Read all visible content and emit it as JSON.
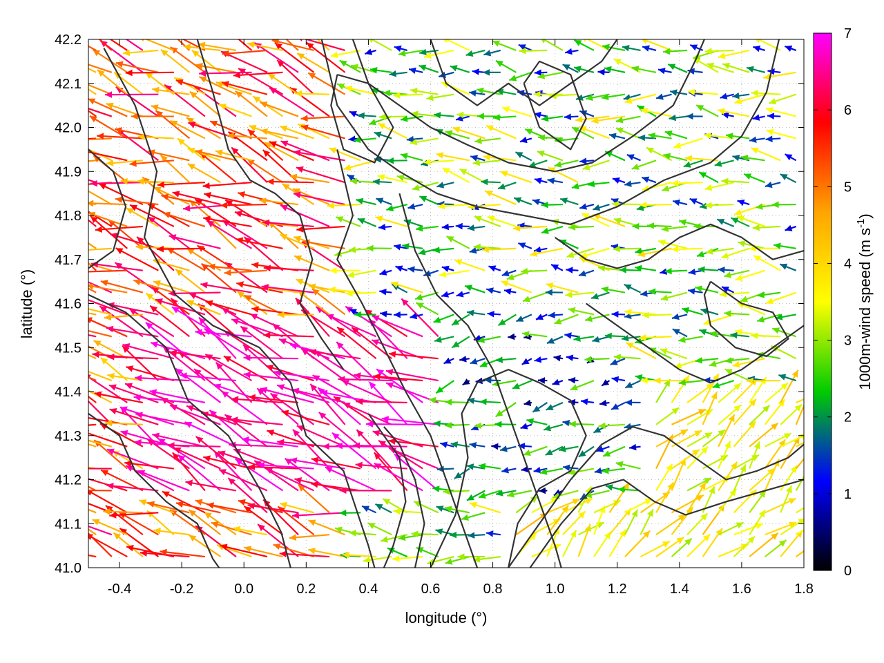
{
  "chart_data": {
    "type": "vector-field",
    "xlabel": "longitude (°)",
    "ylabel": "latitude (°)",
    "colorbar": {
      "label_main": "1000m-wind speed (m s",
      "label_sup": "-1",
      "label_end": ")",
      "range": [
        0,
        7
      ],
      "ticks": [
        "0",
        "1",
        "2",
        "3",
        "4",
        "5",
        "6",
        "7"
      ]
    },
    "x_ticks": [
      "-0.4",
      "-0.2",
      "0.0",
      "0.2",
      "0.4",
      "0.6",
      "0.8",
      "1.0",
      "1.2",
      "1.4",
      "1.6",
      "1.8"
    ],
    "y_ticks": [
      "41.0",
      "41.1",
      "41.2",
      "41.3",
      "41.4",
      "41.5",
      "41.6",
      "41.7",
      "41.8",
      "41.9",
      "42.0",
      "42.1",
      "42.2"
    ],
    "xlim": [
      -0.5,
      1.8
    ],
    "ylim": [
      41.0,
      42.2
    ],
    "grid": true,
    "colormap": [
      "#000000",
      "#0000ff",
      "#00cc00",
      "#ffff00",
      "#ffa500",
      "#ff0000",
      "#ff00ff"
    ],
    "contour_color": "#333333",
    "vector_grid": {
      "dx": 0.05,
      "dy": 0.05
    },
    "wind_regimes": [
      {
        "region": "west",
        "lon": [
          -0.5,
          0.35
        ],
        "lat": [
          41.0,
          42.2
        ],
        "speed": [
          4,
          6.5
        ],
        "direction_deg_from": 110
      },
      {
        "region": "south-west core",
        "lon": [
          -0.3,
          0.65
        ],
        "lat": [
          41.15,
          41.55
        ],
        "speed": [
          6,
          7
        ],
        "direction_deg_from": 115
      },
      {
        "region": "north-centre",
        "lon": [
          0.35,
          1.8
        ],
        "lat": [
          41.6,
          42.2
        ],
        "speed": [
          1,
          4
        ],
        "direction_deg_from": 95
      },
      {
        "region": "south-east",
        "lon": [
          0.85,
          1.8
        ],
        "lat": [
          41.0,
          41.4
        ],
        "speed": [
          3,
          4.5
        ],
        "direction_deg_from": 225
      },
      {
        "region": "centre",
        "lon": [
          0.65,
          1.3
        ],
        "lat": [
          41.15,
          41.6
        ],
        "speed": [
          0.5,
          3
        ],
        "direction_deg_from": 80
      }
    ],
    "contours": [
      [
        [
          -0.45,
          42.18
        ],
        [
          -0.35,
          42.05
        ],
        [
          -0.28,
          41.9
        ],
        [
          -0.32,
          41.75
        ],
        [
          -0.22,
          41.62
        ],
        [
          -0.1,
          41.55
        ],
        [
          0.05,
          41.5
        ],
        [
          0.15,
          41.42
        ],
        [
          0.2,
          41.3
        ],
        [
          0.32,
          41.22
        ],
        [
          0.4,
          41.05
        ],
        [
          0.42,
          41.0
        ]
      ],
      [
        [
          -0.5,
          41.62
        ],
        [
          -0.38,
          41.58
        ],
        [
          -0.25,
          41.5
        ],
        [
          -0.18,
          41.38
        ],
        [
          -0.05,
          41.3
        ],
        [
          0.05,
          41.18
        ],
        [
          0.12,
          41.08
        ],
        [
          0.15,
          41.0
        ]
      ],
      [
        [
          -0.5,
          41.35
        ],
        [
          -0.4,
          41.3
        ],
        [
          -0.35,
          41.22
        ],
        [
          -0.25,
          41.15
        ],
        [
          -0.15,
          41.1
        ],
        [
          -0.1,
          41.02
        ],
        [
          -0.08,
          41.0
        ]
      ],
      [
        [
          0.25,
          42.2
        ],
        [
          0.3,
          42.05
        ],
        [
          0.4,
          41.95
        ],
        [
          0.5,
          41.9
        ],
        [
          0.62,
          41.85
        ],
        [
          0.75,
          41.82
        ],
        [
          0.9,
          41.8
        ],
        [
          1.05,
          41.78
        ],
        [
          1.2,
          41.82
        ],
        [
          1.35,
          41.88
        ],
        [
          1.5,
          41.92
        ],
        [
          1.6,
          41.98
        ],
        [
          1.68,
          42.08
        ],
        [
          1.72,
          42.2
        ]
      ],
      [
        [
          0.35,
          42.2
        ],
        [
          0.4,
          42.1
        ],
        [
          0.5,
          42.05
        ],
        [
          0.6,
          42.0
        ],
        [
          0.72,
          41.96
        ],
        [
          0.85,
          41.92
        ],
        [
          1.0,
          41.9
        ],
        [
          1.12,
          41.92
        ],
        [
          1.25,
          41.98
        ],
        [
          1.38,
          42.05
        ],
        [
          1.45,
          42.15
        ],
        [
          1.48,
          42.2
        ]
      ],
      [
        [
          0.6,
          42.2
        ],
        [
          0.65,
          42.1
        ],
        [
          0.75,
          42.05
        ],
        [
          0.85,
          42.1
        ],
        [
          0.95,
          42.05
        ],
        [
          1.05,
          42.1
        ],
        [
          1.15,
          42.15
        ],
        [
          1.2,
          42.2
        ]
      ],
      [
        [
          0.3,
          41.95
        ],
        [
          0.35,
          41.8
        ],
        [
          0.3,
          41.7
        ],
        [
          0.38,
          41.6
        ],
        [
          0.45,
          41.5
        ],
        [
          0.52,
          41.4
        ],
        [
          0.6,
          41.3
        ],
        [
          0.65,
          41.2
        ],
        [
          0.7,
          41.1
        ],
        [
          0.75,
          41.0
        ]
      ],
      [
        [
          0.5,
          41.85
        ],
        [
          0.55,
          41.72
        ],
        [
          0.62,
          41.62
        ],
        [
          0.72,
          41.55
        ],
        [
          0.8,
          41.45
        ],
        [
          0.85,
          41.35
        ],
        [
          0.9,
          41.25
        ],
        [
          0.95,
          41.15
        ],
        [
          1.0,
          41.05
        ],
        [
          1.02,
          41.0
        ]
      ],
      [
        [
          0.6,
          41.0
        ],
        [
          0.68,
          41.12
        ],
        [
          0.72,
          41.25
        ],
        [
          0.7,
          41.35
        ],
        [
          0.75,
          41.42
        ],
        [
          0.85,
          41.45
        ],
        [
          0.95,
          41.42
        ],
        [
          1.05,
          41.38
        ],
        [
          1.1,
          41.3
        ],
        [
          1.05,
          41.22
        ],
        [
          0.95,
          41.18
        ],
        [
          0.88,
          41.1
        ],
        [
          0.85,
          41.0
        ]
      ],
      [
        [
          0.85,
          41.0
        ],
        [
          0.95,
          41.1
        ],
        [
          1.05,
          41.2
        ],
        [
          1.15,
          41.28
        ],
        [
          1.25,
          41.32
        ],
        [
          1.35,
          41.3
        ],
        [
          1.45,
          41.25
        ],
        [
          1.55,
          41.2
        ],
        [
          1.65,
          41.22
        ],
        [
          1.75,
          41.25
        ],
        [
          1.8,
          41.28
        ]
      ],
      [
        [
          0.92,
          41.0
        ],
        [
          1.02,
          41.1
        ],
        [
          1.12,
          41.18
        ],
        [
          1.22,
          41.2
        ],
        [
          1.32,
          41.15
        ],
        [
          1.42,
          41.12
        ],
        [
          1.55,
          41.15
        ],
        [
          1.7,
          41.18
        ],
        [
          1.8,
          41.2
        ]
      ],
      [
        [
          1.1,
          41.6
        ],
        [
          1.2,
          41.55
        ],
        [
          1.3,
          41.5
        ],
        [
          1.4,
          41.45
        ],
        [
          1.5,
          41.42
        ],
        [
          1.6,
          41.45
        ],
        [
          1.7,
          41.5
        ],
        [
          1.8,
          41.55
        ]
      ],
      [
        [
          1.0,
          41.75
        ],
        [
          1.1,
          41.7
        ],
        [
          1.2,
          41.68
        ],
        [
          1.3,
          41.7
        ],
        [
          1.4,
          41.75
        ],
        [
          1.5,
          41.78
        ],
        [
          1.6,
          41.75
        ],
        [
          1.7,
          41.7
        ],
        [
          1.8,
          41.72
        ]
      ],
      [
        [
          -0.5,
          41.95
        ],
        [
          -0.42,
          41.9
        ],
        [
          -0.38,
          41.82
        ],
        [
          -0.42,
          41.72
        ],
        [
          -0.5,
          41.68
        ]
      ],
      [
        [
          -0.15,
          42.2
        ],
        [
          -0.1,
          42.08
        ],
        [
          -0.05,
          41.95
        ],
        [
          0.02,
          41.88
        ],
        [
          0.1,
          41.85
        ],
        [
          0.18,
          41.8
        ],
        [
          0.22,
          41.7
        ],
        [
          0.18,
          41.6
        ],
        [
          0.25,
          41.52
        ],
        [
          0.32,
          41.45
        ]
      ],
      [
        [
          0.4,
          41.35
        ],
        [
          0.45,
          41.3
        ],
        [
          0.5,
          41.25
        ],
        [
          0.52,
          41.15
        ],
        [
          0.48,
          41.05
        ],
        [
          0.45,
          41.0
        ]
      ],
      [
        [
          0.55,
          41.0
        ],
        [
          0.58,
          41.1
        ],
        [
          0.55,
          41.2
        ],
        [
          0.5,
          41.28
        ],
        [
          0.45,
          41.32
        ]
      ],
      [
        [
          1.5,
          41.65
        ],
        [
          1.6,
          41.6
        ],
        [
          1.7,
          41.58
        ],
        [
          1.75,
          41.52
        ],
        [
          1.68,
          41.48
        ],
        [
          1.58,
          41.5
        ],
        [
          1.5,
          41.55
        ],
        [
          1.48,
          41.62
        ],
        [
          1.5,
          41.65
        ]
      ],
      [
        [
          0.3,
          42.12
        ],
        [
          0.4,
          42.1
        ],
        [
          0.48,
          42.0
        ],
        [
          0.42,
          41.92
        ],
        [
          0.32,
          41.95
        ],
        [
          0.28,
          42.05
        ],
        [
          0.3,
          42.12
        ]
      ],
      [
        [
          0.9,
          42.1
        ],
        [
          0.95,
          42.0
        ],
        [
          1.05,
          41.95
        ],
        [
          1.1,
          42.02
        ],
        [
          1.05,
          42.12
        ],
        [
          0.95,
          42.15
        ],
        [
          0.9,
          42.1
        ]
      ]
    ]
  }
}
